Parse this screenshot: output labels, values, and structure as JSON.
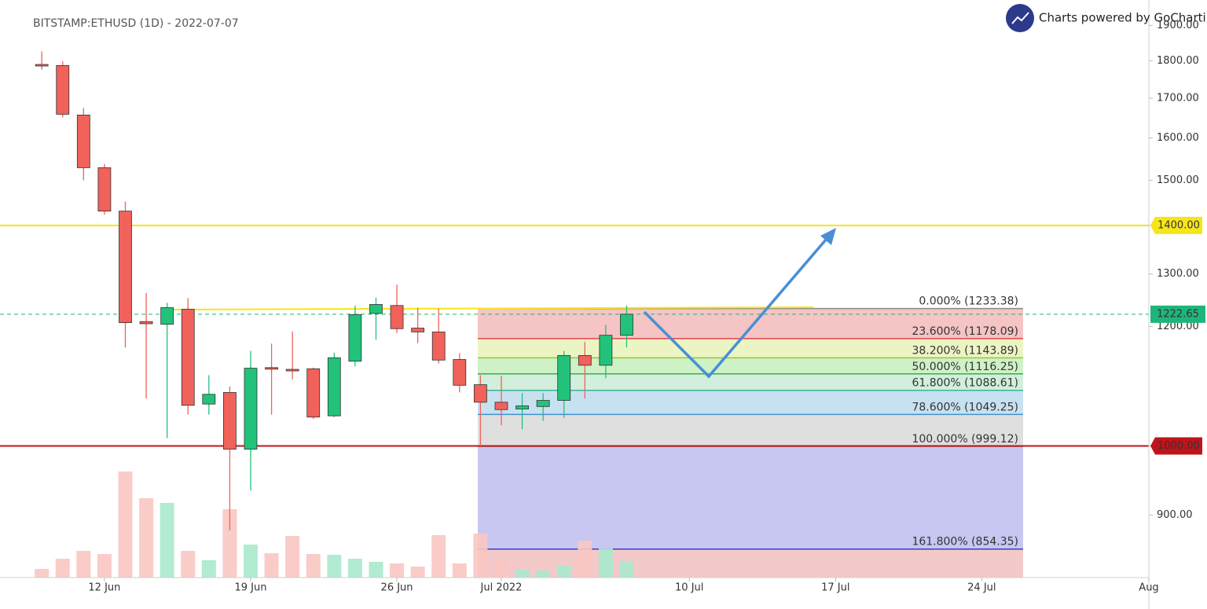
{
  "chart_data": {
    "type": "candlestick",
    "title": "BITSTAMP:ETHUSD (1D) - 2022-07-07",
    "branding": "Charts powered by GoCharti",
    "log_scale": true,
    "xlim": [
      "2022-06-07",
      "2022-08-01"
    ],
    "ylim": [
      818,
      1975
    ],
    "xticks": [
      {
        "value": "2022-06-12",
        "label": "12 Jun"
      },
      {
        "value": "2022-06-19",
        "label": "19 Jun"
      },
      {
        "value": "2022-06-26",
        "label": "26 Jun"
      },
      {
        "value": "2022-07-01",
        "label": "Jul 2022"
      },
      {
        "value": "2022-07-10",
        "label": "10 Jul"
      },
      {
        "value": "2022-07-17",
        "label": "17 Jul"
      },
      {
        "value": "2022-07-24",
        "label": "24 Jul"
      },
      {
        "value": "2022-08-01",
        "label": "Aug"
      }
    ],
    "yticks": [
      {
        "value": 900,
        "label": "900.00"
      },
      {
        "value": 1000,
        "label": "1000.00"
      },
      {
        "value": 1200,
        "label": "1200.00"
      },
      {
        "value": 1300,
        "label": "1300.00"
      },
      {
        "value": 1400,
        "label": "1400.00"
      },
      {
        "value": 1500,
        "label": "1500.00"
      },
      {
        "value": 1600,
        "label": "1600.00"
      },
      {
        "value": 1700,
        "label": "1700.00"
      },
      {
        "value": 1800,
        "label": "1800.00"
      },
      {
        "value": 1900,
        "label": "1900.00"
      }
    ],
    "up_color": "#22c27a",
    "down_color": "#f0625a",
    "up_volume_color": "#a9e9cd",
    "down_volume_color": "#fac6c2",
    "candles": [
      {
        "date": "2022-06-09",
        "open": 1790,
        "high": 1826,
        "low": 1776,
        "close": 1787,
        "volume": 11
      },
      {
        "date": "2022-06-10",
        "open": 1787,
        "high": 1799,
        "low": 1651,
        "close": 1659,
        "volume": 24
      },
      {
        "date": "2022-06-11",
        "open": 1657,
        "high": 1675,
        "low": 1500,
        "close": 1529,
        "volume": 34
      },
      {
        "date": "2022-06-12",
        "open": 1529,
        "high": 1538,
        "low": 1423,
        "close": 1431,
        "volume": 30
      },
      {
        "date": "2022-06-13",
        "open": 1431,
        "high": 1452,
        "low": 1162,
        "close": 1207,
        "volume": 135
      },
      {
        "date": "2022-06-14",
        "open": 1209,
        "high": 1263,
        "low": 1075,
        "close": 1205,
        "volume": 101
      },
      {
        "date": "2022-06-15",
        "open": 1204,
        "high": 1244,
        "low": 1012,
        "close": 1235,
        "volume": 95
      },
      {
        "date": "2022-06-16",
        "open": 1232,
        "high": 1253,
        "low": 1049,
        "close": 1064,
        "volume": 34
      },
      {
        "date": "2022-06-17",
        "open": 1066,
        "high": 1114,
        "low": 1049,
        "close": 1082,
        "volume": 22
      },
      {
        "date": "2022-06-18",
        "open": 1085,
        "high": 1095,
        "low": 879,
        "close": 995,
        "volume": 87
      },
      {
        "date": "2022-06-19",
        "open": 995,
        "high": 1156,
        "low": 934,
        "close": 1126,
        "volume": 42
      },
      {
        "date": "2022-06-20",
        "open": 1127,
        "high": 1169,
        "low": 1049,
        "close": 1125,
        "volume": 31
      },
      {
        "date": "2022-06-21",
        "open": 1124,
        "high": 1191,
        "low": 1107,
        "close": 1122,
        "volume": 53
      },
      {
        "date": "2022-06-22",
        "open": 1125,
        "high": 1127,
        "low": 1042,
        "close": 1045,
        "volume": 30
      },
      {
        "date": "2022-06-23",
        "open": 1047,
        "high": 1153,
        "low": 1045,
        "close": 1144,
        "volume": 29
      },
      {
        "date": "2022-06-24",
        "open": 1138,
        "high": 1239,
        "low": 1129,
        "close": 1222,
        "volume": 24
      },
      {
        "date": "2022-06-25",
        "open": 1224,
        "high": 1254,
        "low": 1176,
        "close": 1241,
        "volume": 20
      },
      {
        "date": "2022-06-26",
        "open": 1239,
        "high": 1279,
        "low": 1188,
        "close": 1196,
        "volume": 18
      },
      {
        "date": "2022-06-27",
        "open": 1197,
        "high": 1235,
        "low": 1170,
        "close": 1190,
        "volume": 14
      },
      {
        "date": "2022-06-28",
        "open": 1190,
        "high": 1233,
        "low": 1134,
        "close": 1140,
        "volume": 54
      },
      {
        "date": "2022-06-29",
        "open": 1141,
        "high": 1152,
        "low": 1085,
        "close": 1097,
        "volume": 18
      },
      {
        "date": "2022-06-30",
        "open": 1098,
        "high": 1114,
        "low": 1000,
        "close": 1069,
        "volume": 56
      },
      {
        "date": "2022-07-01",
        "open": 1069,
        "high": 1113,
        "low": 1032,
        "close": 1057,
        "volume": 23
      },
      {
        "date": "2022-07-02",
        "open": 1058,
        "high": 1084,
        "low": 1026,
        "close": 1063,
        "volume": 10
      },
      {
        "date": "2022-07-03",
        "open": 1062,
        "high": 1084,
        "low": 1039,
        "close": 1072,
        "volume": 9
      },
      {
        "date": "2022-07-04",
        "open": 1072,
        "high": 1156,
        "low": 1044,
        "close": 1148,
        "volume": 15
      },
      {
        "date": "2022-07-05",
        "open": 1148,
        "high": 1172,
        "low": 1075,
        "close": 1131,
        "volume": 47
      },
      {
        "date": "2022-07-06",
        "open": 1131,
        "high": 1203,
        "low": 1109,
        "close": 1184,
        "volume": 37
      },
      {
        "date": "2022-07-07",
        "open": 1184,
        "high": 1239,
        "low": 1162,
        "close": 1222.65,
        "volume": 21
      }
    ],
    "price_lines": [
      {
        "value": 1400,
        "label": "1400.00",
        "color": "#f5e51a",
        "text_color": "#000000"
      },
      {
        "value": 1000,
        "label": "1000.00",
        "color": "#c0141c",
        "text_color": "#ffffff"
      }
    ],
    "last_price": {
      "value": 1222.65,
      "label": "1222.65",
      "color": "#1db57a"
    },
    "fibonacci": {
      "extension_fill": "#f2bfbf",
      "levels": [
        {
          "label": "0.000% (1233.38)",
          "value": 1233.38,
          "color": "#8a8a8a",
          "fill": null
        },
        {
          "label": "23.600% (1178.09)",
          "value": 1178.09,
          "color": "#e0454c",
          "fill": "#f3baba"
        },
        {
          "label": "38.200% (1143.89)",
          "value": 1143.89,
          "color": "#9dc23a",
          "fill": "#e7f3b8"
        },
        {
          "label": "50.000% (1116.25)",
          "value": 1116.25,
          "color": "#34b24a",
          "fill": "#c6efbc"
        },
        {
          "label": "61.800% (1088.61)",
          "value": 1088.61,
          "color": "#3cb48e",
          "fill": "#c9ecd6"
        },
        {
          "label": "78.600% (1049.25)",
          "value": 1049.25,
          "color": "#3f93cf",
          "fill": "#bddcef"
        },
        {
          "label": "100.000% (999.12)",
          "value": 999.12,
          "color": "#9a9a9a",
          "fill": "#d9d9d9"
        },
        {
          "label": "161.800% (854.35)",
          "value": 854.35,
          "color": "#3c3cc4",
          "fill": "#bdbdee"
        }
      ]
    }
  }
}
